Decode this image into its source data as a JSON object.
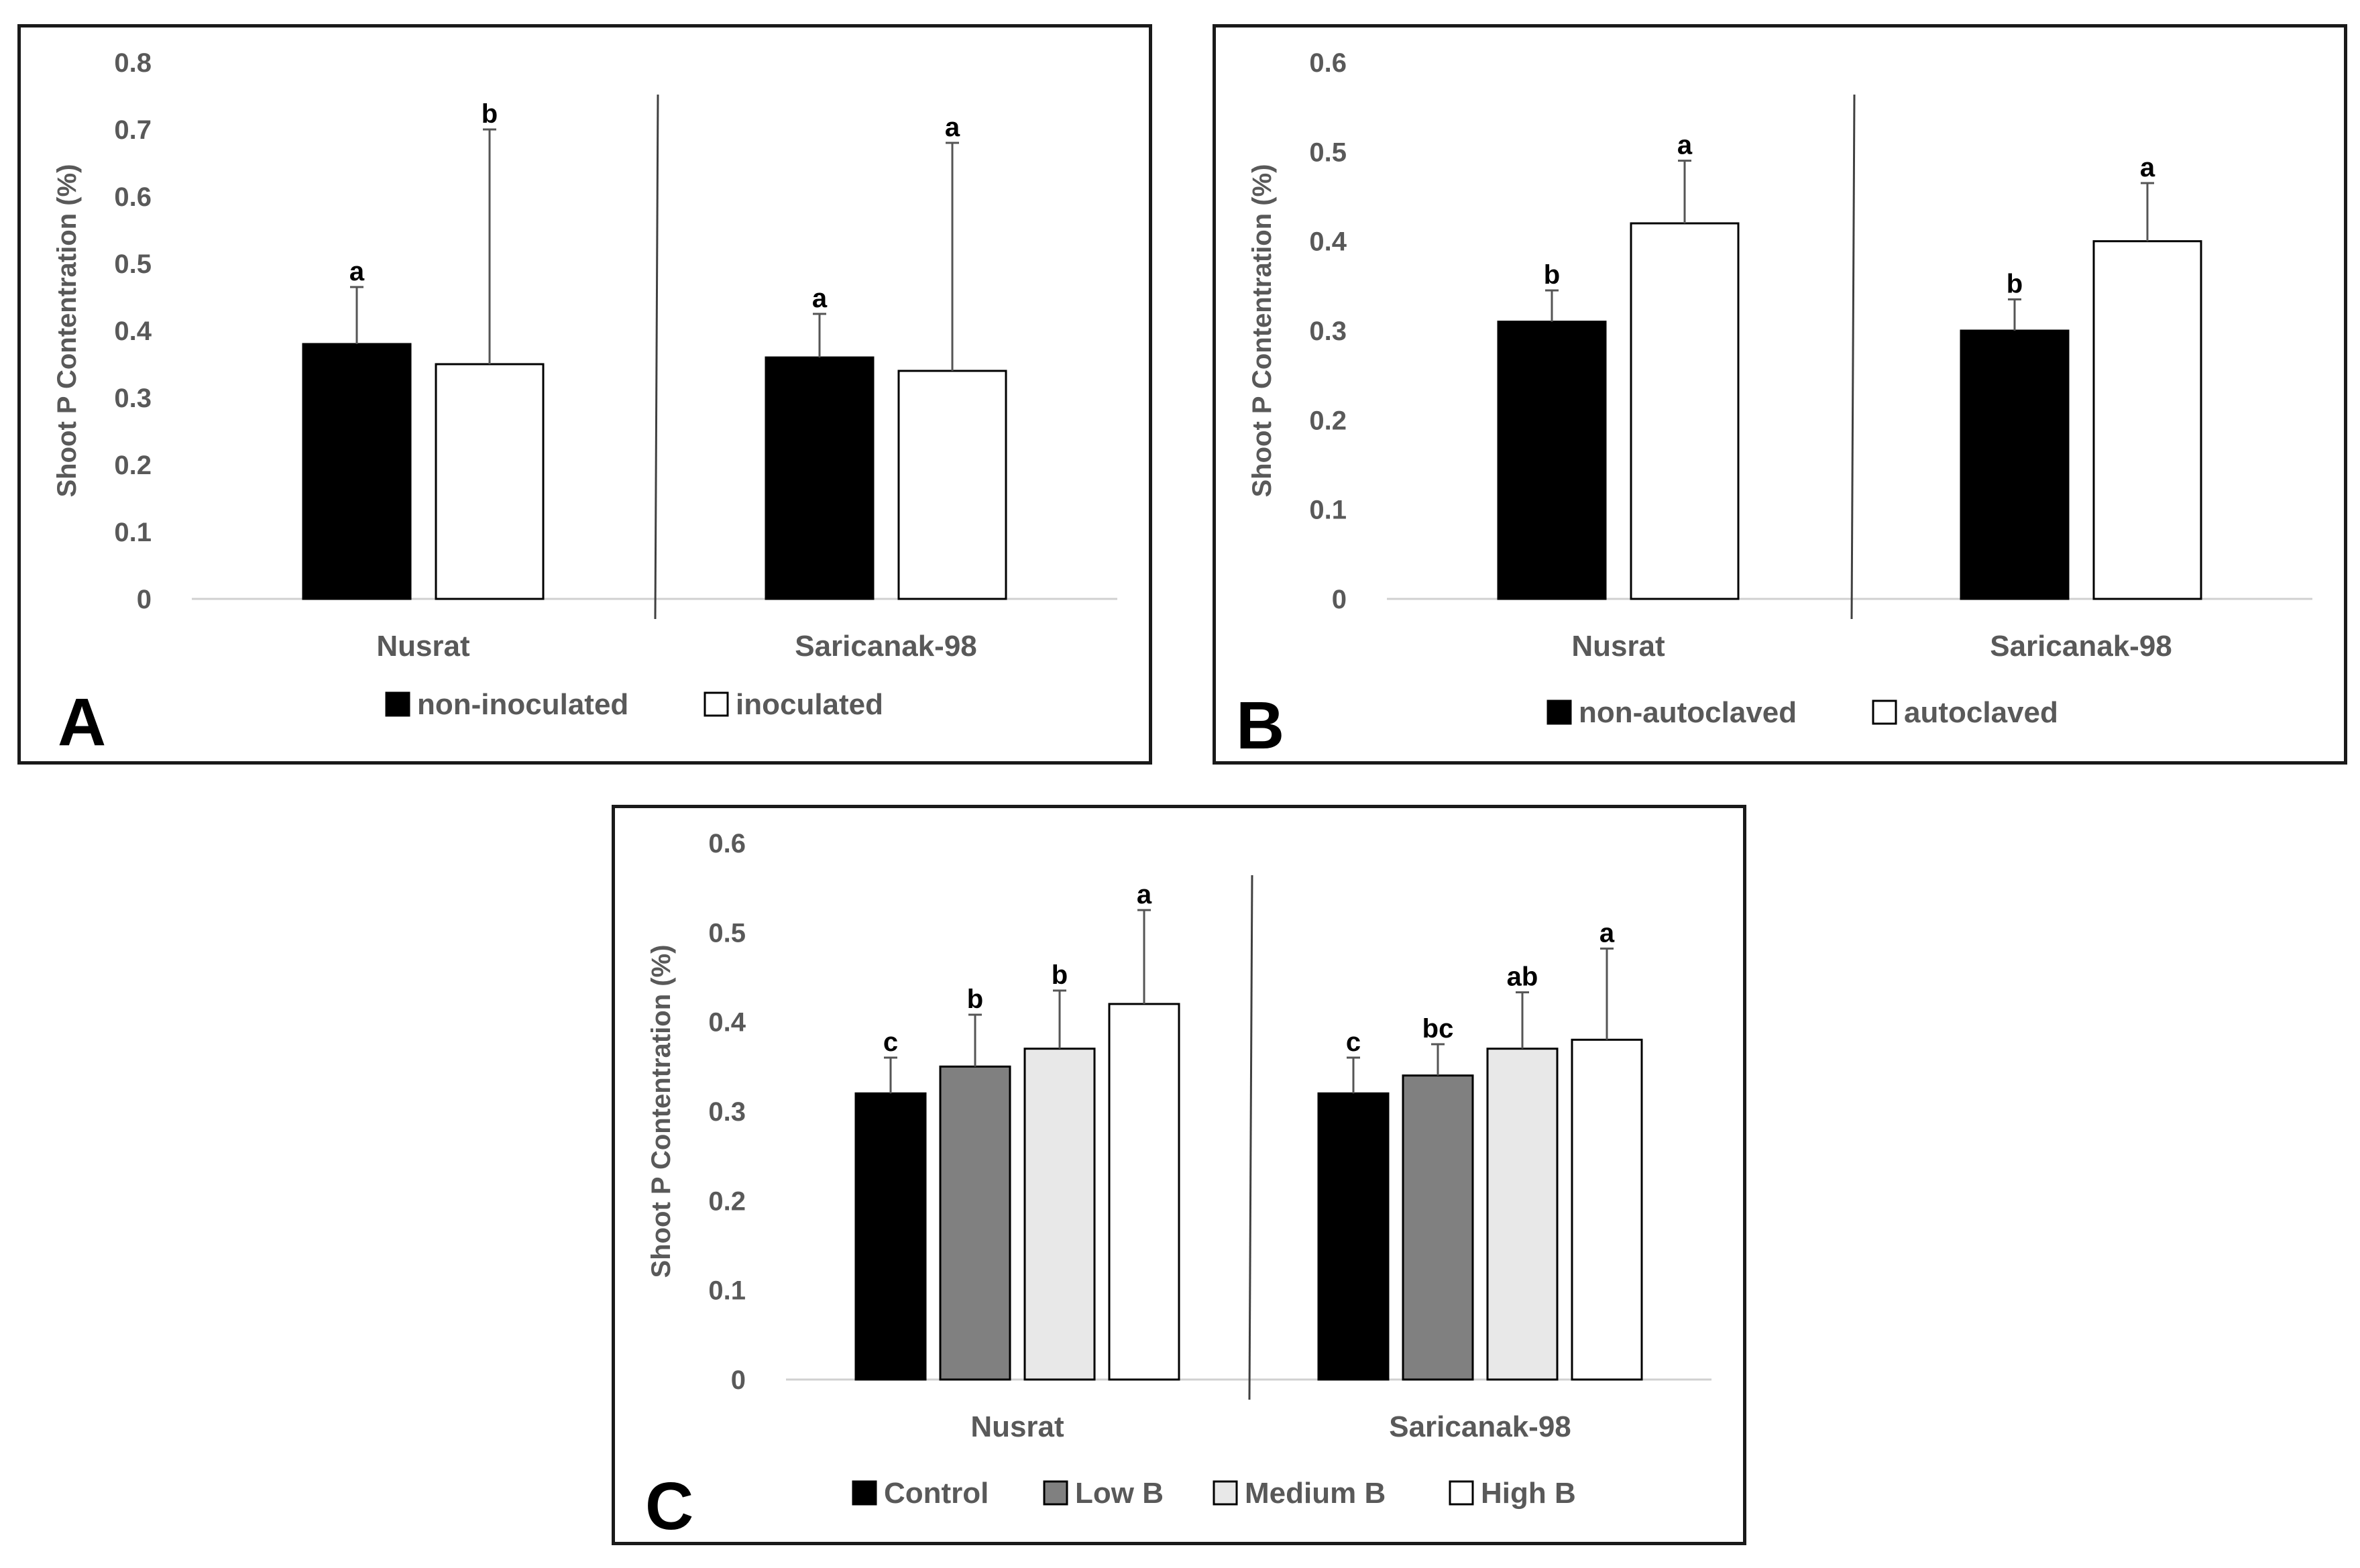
{
  "chart_data": [
    {
      "type": "bar",
      "panel_label": "A",
      "ylabel": "Shoot P Contentration (%)",
      "ylim": [
        0,
        0.8
      ],
      "yticks": [
        "0",
        "0.1",
        "0.2",
        "0.3",
        "0.4",
        "0.5",
        "0.6",
        "0.7",
        "0.8"
      ],
      "categories": [
        "Nusrat",
        "Saricanak-98"
      ],
      "series": [
        {
          "name": "non-inoculated",
          "color": "#000000",
          "values": [
            0.38,
            0.36
          ],
          "errors": [
            0.085,
            0.065
          ],
          "letters": [
            "a",
            "a"
          ]
        },
        {
          "name": "inoculated",
          "color": "#ffffff",
          "values": [
            0.35,
            0.34
          ],
          "errors": [
            0.35,
            0.34
          ],
          "letters": [
            "b",
            "a"
          ]
        }
      ]
    },
    {
      "type": "bar",
      "panel_label": "B",
      "ylabel": "Shoot P  Contentration (%)",
      "ylim": [
        0,
        0.6
      ],
      "yticks": [
        "0",
        "0.1",
        "0.2",
        "0.3",
        "0.4",
        "0.5",
        "0.6"
      ],
      "categories": [
        "Nusrat",
        "Saricanak-98"
      ],
      "series": [
        {
          "name": "non-autoclaved",
          "color": "#000000",
          "values": [
            0.31,
            0.3
          ],
          "errors": [
            0.035,
            0.035
          ],
          "letters": [
            "b",
            "b"
          ]
        },
        {
          "name": "autoclaved",
          "color": "#ffffff",
          "values": [
            0.42,
            0.4
          ],
          "errors": [
            0.07,
            0.065
          ],
          "letters": [
            "a",
            "a"
          ]
        }
      ]
    },
    {
      "type": "bar",
      "panel_label": "C",
      "ylabel": "Shoot P Contentration (%)",
      "ylim": [
        0,
        0.6
      ],
      "yticks": [
        "0",
        "0.1",
        "0.2",
        "0.3",
        "0.4",
        "0.5",
        "0.6"
      ],
      "categories": [
        "Nusrat",
        "Saricanak-98"
      ],
      "series": [
        {
          "name": "Control",
          "color": "#000000",
          "values": [
            0.32,
            0.32
          ],
          "errors": [
            0.04,
            0.04
          ],
          "letters": [
            "c",
            "c"
          ]
        },
        {
          "name": "Low B",
          "color": "#808080",
          "values": [
            0.35,
            0.34
          ],
          "errors": [
            0.058,
            0.035
          ],
          "letters": [
            "b",
            "bc"
          ]
        },
        {
          "name": "Medium B",
          "color": "#e8e8e8",
          "values": [
            0.37,
            0.37
          ],
          "errors": [
            0.065,
            0.063
          ],
          "letters": [
            "b",
            "ab"
          ]
        },
        {
          "name": "High B",
          "color": "#ffffff",
          "values": [
            0.42,
            0.38
          ],
          "errors": [
            0.105,
            0.102
          ],
          "letters": [
            "a",
            "a"
          ]
        }
      ]
    }
  ]
}
